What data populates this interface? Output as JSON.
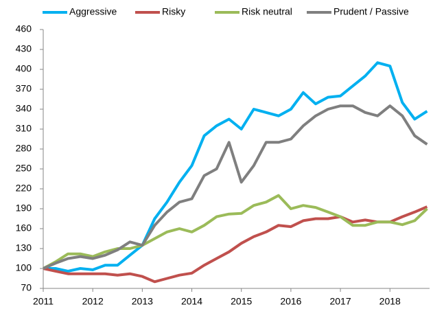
{
  "chart_data": {
    "type": "line",
    "x": [
      2011,
      2011.25,
      2011.5,
      2011.75,
      2012,
      2012.25,
      2012.5,
      2012.75,
      2013,
      2013.25,
      2013.5,
      2013.75,
      2014,
      2014.25,
      2014.5,
      2014.75,
      2015,
      2015.25,
      2015.5,
      2015.75,
      2016,
      2016.25,
      2016.5,
      2016.75,
      2017,
      2017.25,
      2017.5,
      2017.75,
      2018,
      2018.25,
      2018.5,
      2018.75
    ],
    "series": [
      {
        "name": "Aggressive",
        "color": "#00b0f0",
        "values": [
          100,
          100,
          96,
          100,
          98,
          105,
          105,
          120,
          135,
          175,
          200,
          230,
          255,
          300,
          315,
          325,
          310,
          340,
          335,
          330,
          340,
          365,
          348,
          358,
          360,
          375,
          390,
          410,
          405,
          350,
          325,
          337
        ]
      },
      {
        "name": "Risky",
        "color": "#c0504d",
        "values": [
          100,
          96,
          92,
          92,
          92,
          92,
          90,
          92,
          88,
          80,
          85,
          90,
          93,
          105,
          115,
          125,
          138,
          148,
          155,
          165,
          163,
          172,
          175,
          175,
          178,
          170,
          173,
          170,
          170,
          178,
          185,
          193
        ]
      },
      {
        "name": "Risk neutral",
        "color": "#9bbb59",
        "values": [
          100,
          110,
          122,
          122,
          118,
          125,
          130,
          130,
          135,
          145,
          155,
          160,
          155,
          165,
          178,
          182,
          183,
          195,
          200,
          210,
          190,
          195,
          192,
          185,
          178,
          165,
          165,
          170,
          170,
          166,
          172,
          190
        ]
      },
      {
        "name": "Prudent / Passive",
        "color": "#7f7f7f",
        "values": [
          100,
          108,
          115,
          118,
          115,
          120,
          128,
          140,
          135,
          165,
          185,
          200,
          205,
          240,
          250,
          290,
          230,
          255,
          290,
          290,
          295,
          315,
          330,
          340,
          345,
          345,
          335,
          330,
          345,
          330,
          300,
          287
        ]
      }
    ],
    "xlim": [
      2011,
      2018.8
    ],
    "xticks": [
      2011,
      2012,
      2013,
      2014,
      2015,
      2016,
      2017,
      2018
    ],
    "ylim": [
      70,
      460
    ],
    "yticks": [
      70,
      100,
      130,
      160,
      190,
      220,
      250,
      280,
      310,
      340,
      370,
      400,
      430,
      460
    ],
    "grid": false,
    "legend": "top"
  }
}
